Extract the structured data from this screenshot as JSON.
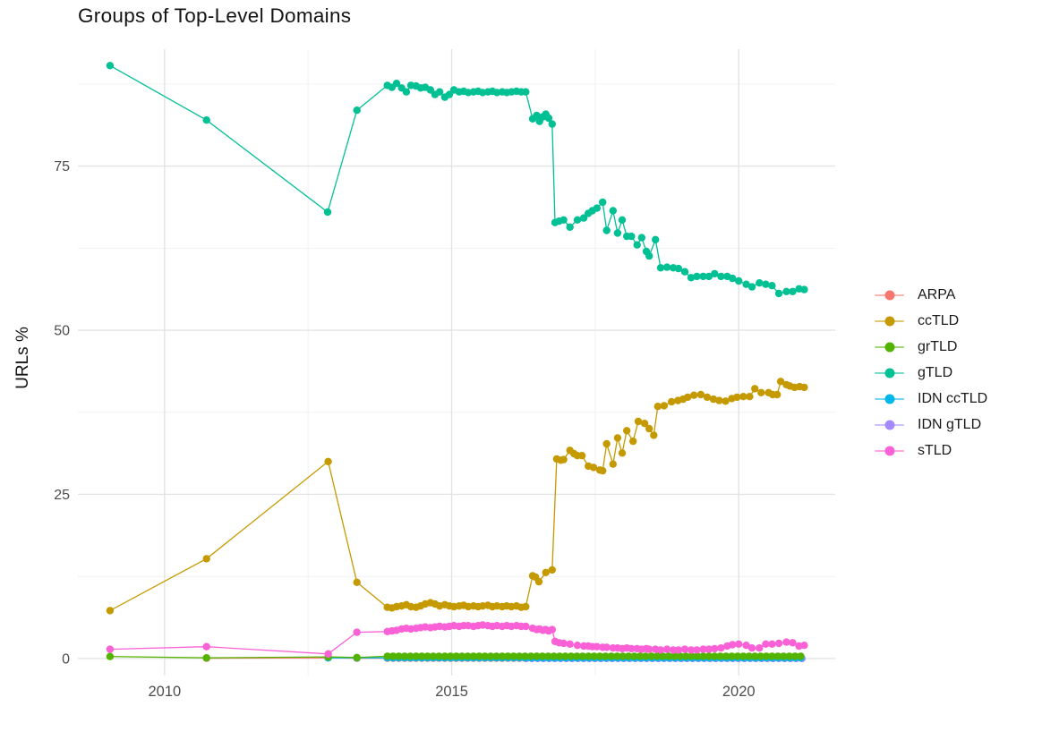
{
  "chart_data": {
    "type": "line",
    "title": "Groups of Top-Level Domains",
    "xlabel": "",
    "ylabel": "URLs %",
    "x_ticks": [
      2010,
      2015,
      2020
    ],
    "x_minor_ticks": [
      2012.5,
      2017.5
    ],
    "y_ticks": [
      0,
      25,
      50,
      75
    ],
    "y_minor_ticks": [
      12.5,
      37.5,
      62.5,
      87.5
    ],
    "x_range": [
      2008.49,
      2021.68
    ],
    "y_range": [
      -2.6,
      92.8
    ],
    "grid": true,
    "grid_major_color": "#E3E3E3",
    "grid_minor_color": "#F1F1F1",
    "axis_text_color": "#4D4D4D",
    "legend_position": "right",
    "draw_order": [
      "ARPA",
      "IDN gTLD",
      "IDN ccTLD",
      "grTLD",
      "ccTLD",
      "gTLD",
      "sTLD"
    ],
    "series": [
      {
        "name": "ARPA",
        "color": "#F8766D",
        "points": [
          [
            2010.73,
            0.05
          ],
          [
            2012.85,
            0.1
          ],
          [
            2013.35,
            0.05
          ]
        ],
        "run": {
          "x0": 2013.88,
          "dx": 0.1,
          "n": 25,
          "y_const": 0.05
        }
      },
      {
        "name": "ccTLD",
        "color": "#C49A00",
        "points": [
          [
            2009.05,
            7.3
          ],
          [
            2010.73,
            15.2
          ],
          [
            2012.85,
            30.0
          ],
          [
            2013.35,
            11.6
          ],
          [
            2013.88,
            7.8
          ],
          [
            2013.96,
            7.7
          ],
          [
            2014.04,
            7.9
          ],
          [
            2014.13,
            8.0
          ],
          [
            2014.21,
            8.2
          ],
          [
            2014.29,
            7.9
          ],
          [
            2014.38,
            7.8
          ],
          [
            2014.46,
            8.0
          ],
          [
            2014.54,
            8.3
          ],
          [
            2014.63,
            8.5
          ],
          [
            2014.71,
            8.3
          ],
          [
            2014.79,
            8.0
          ],
          [
            2014.88,
            8.2
          ],
          [
            2014.96,
            8.0
          ],
          [
            2015.04,
            7.9
          ],
          [
            2015.13,
            8.0
          ],
          [
            2015.21,
            8.1
          ],
          [
            2015.29,
            7.9
          ],
          [
            2015.38,
            8.0
          ],
          [
            2015.46,
            7.9
          ],
          [
            2015.54,
            8.0
          ],
          [
            2015.63,
            8.1
          ],
          [
            2015.71,
            7.9
          ],
          [
            2015.79,
            8.0
          ],
          [
            2015.88,
            7.9
          ],
          [
            2015.96,
            8.0
          ],
          [
            2016.04,
            7.9
          ],
          [
            2016.13,
            8.0
          ],
          [
            2016.21,
            7.8
          ],
          [
            2016.29,
            7.9
          ],
          [
            2016.41,
            12.6
          ],
          [
            2016.46,
            12.4
          ],
          [
            2016.52,
            11.7
          ],
          [
            2016.64,
            13.1
          ],
          [
            2016.75,
            13.5
          ],
          [
            2016.83,
            30.4
          ],
          [
            2016.9,
            30.2
          ],
          [
            2016.95,
            30.3
          ],
          [
            2017.06,
            31.7
          ],
          [
            2017.13,
            31.2
          ],
          [
            2017.19,
            30.9
          ],
          [
            2017.27,
            30.9
          ],
          [
            2017.38,
            29.3
          ],
          [
            2017.47,
            29.1
          ],
          [
            2017.58,
            28.7
          ],
          [
            2017.63,
            28.6
          ],
          [
            2017.7,
            32.7
          ],
          [
            2017.81,
            29.6
          ],
          [
            2017.89,
            33.6
          ],
          [
            2017.97,
            31.3
          ],
          [
            2018.05,
            34.7
          ],
          [
            2018.16,
            33.1
          ],
          [
            2018.25,
            36.1
          ],
          [
            2018.36,
            35.8
          ],
          [
            2018.44,
            35.0
          ],
          [
            2018.52,
            34.0
          ],
          [
            2018.59,
            38.4
          ],
          [
            2018.7,
            38.5
          ],
          [
            2018.83,
            39.1
          ],
          [
            2018.94,
            39.3
          ],
          [
            2019.03,
            39.5
          ],
          [
            2019.11,
            39.8
          ],
          [
            2019.22,
            40.1
          ],
          [
            2019.34,
            40.2
          ],
          [
            2019.45,
            39.8
          ],
          [
            2019.56,
            39.5
          ],
          [
            2019.66,
            39.3
          ],
          [
            2019.77,
            39.2
          ],
          [
            2019.88,
            39.6
          ],
          [
            2019.97,
            39.8
          ],
          [
            2020.08,
            39.9
          ],
          [
            2020.19,
            39.9
          ],
          [
            2020.28,
            41.1
          ],
          [
            2020.39,
            40.5
          ],
          [
            2020.52,
            40.5
          ],
          [
            2020.59,
            40.2
          ],
          [
            2020.67,
            40.2
          ],
          [
            2020.73,
            42.2
          ],
          [
            2020.83,
            41.7
          ],
          [
            2020.89,
            41.5
          ],
          [
            2020.97,
            41.3
          ],
          [
            2021.06,
            41.4
          ],
          [
            2021.14,
            41.3
          ]
        ],
        "run": null
      },
      {
        "name": "grTLD",
        "color": "#53B400",
        "points": [
          [
            2009.05,
            0.3
          ],
          [
            2010.73,
            0.1
          ],
          [
            2012.85,
            0.25
          ],
          [
            2013.35,
            0.15
          ]
        ],
        "run": {
          "x0": 2013.88,
          "dx": 0.1,
          "n": 73,
          "y_const": 0.35
        }
      },
      {
        "name": "gTLD",
        "color": "#00C094",
        "points": [
          [
            2009.05,
            90.3
          ],
          [
            2010.73,
            82.0
          ],
          [
            2012.84,
            68.0
          ],
          [
            2013.35,
            83.5
          ],
          [
            2013.88,
            87.3
          ],
          [
            2013.96,
            87.0
          ],
          [
            2014.04,
            87.6
          ],
          [
            2014.13,
            86.9
          ],
          [
            2014.21,
            86.3
          ],
          [
            2014.29,
            87.3
          ],
          [
            2014.38,
            87.2
          ],
          [
            2014.46,
            86.9
          ],
          [
            2014.54,
            87.0
          ],
          [
            2014.63,
            86.6
          ],
          [
            2014.71,
            85.9
          ],
          [
            2014.79,
            86.3
          ],
          [
            2014.88,
            85.5
          ],
          [
            2014.96,
            85.9
          ],
          [
            2015.04,
            86.6
          ],
          [
            2015.13,
            86.3
          ],
          [
            2015.21,
            86.4
          ],
          [
            2015.29,
            86.2
          ],
          [
            2015.38,
            86.3
          ],
          [
            2015.46,
            86.4
          ],
          [
            2015.54,
            86.2
          ],
          [
            2015.63,
            86.3
          ],
          [
            2015.71,
            86.4
          ],
          [
            2015.79,
            86.2
          ],
          [
            2015.88,
            86.3
          ],
          [
            2015.96,
            86.2
          ],
          [
            2016.04,
            86.3
          ],
          [
            2016.13,
            86.4
          ],
          [
            2016.21,
            86.3
          ],
          [
            2016.29,
            86.3
          ],
          [
            2016.41,
            82.2
          ],
          [
            2016.48,
            82.7
          ],
          [
            2016.53,
            81.8
          ],
          [
            2016.59,
            82.5
          ],
          [
            2016.64,
            82.9
          ],
          [
            2016.69,
            82.3
          ],
          [
            2016.75,
            81.4
          ],
          [
            2016.8,
            66.4
          ],
          [
            2016.87,
            66.6
          ],
          [
            2016.95,
            66.8
          ],
          [
            2017.06,
            65.7
          ],
          [
            2017.19,
            66.8
          ],
          [
            2017.3,
            67.1
          ],
          [
            2017.38,
            67.8
          ],
          [
            2017.45,
            68.2
          ],
          [
            2017.53,
            68.6
          ],
          [
            2017.63,
            69.5
          ],
          [
            2017.7,
            65.2
          ],
          [
            2017.81,
            68.2
          ],
          [
            2017.89,
            64.8
          ],
          [
            2017.97,
            66.8
          ],
          [
            2018.05,
            64.3
          ],
          [
            2018.13,
            64.3
          ],
          [
            2018.23,
            63.0
          ],
          [
            2018.31,
            64.1
          ],
          [
            2018.39,
            62.0
          ],
          [
            2018.44,
            61.3
          ],
          [
            2018.55,
            63.8
          ],
          [
            2018.64,
            59.5
          ],
          [
            2018.75,
            59.6
          ],
          [
            2018.86,
            59.5
          ],
          [
            2018.95,
            59.4
          ],
          [
            2019.06,
            58.9
          ],
          [
            2019.17,
            58.0
          ],
          [
            2019.27,
            58.2
          ],
          [
            2019.38,
            58.2
          ],
          [
            2019.48,
            58.2
          ],
          [
            2019.58,
            58.6
          ],
          [
            2019.69,
            58.2
          ],
          [
            2019.8,
            58.2
          ],
          [
            2019.89,
            57.9
          ],
          [
            2020.0,
            57.5
          ],
          [
            2020.13,
            57.0
          ],
          [
            2020.23,
            56.6
          ],
          [
            2020.36,
            57.2
          ],
          [
            2020.47,
            57.0
          ],
          [
            2020.58,
            56.8
          ],
          [
            2020.7,
            55.6
          ],
          [
            2020.83,
            55.9
          ],
          [
            2020.94,
            55.9
          ],
          [
            2021.05,
            56.3
          ],
          [
            2021.14,
            56.2
          ]
        ],
        "run": null
      },
      {
        "name": "IDN ccTLD",
        "color": "#00B6EB",
        "points": [
          [
            2012.85,
            0.1
          ],
          [
            2013.35,
            0.1
          ]
        ],
        "run": {
          "x0": 2013.88,
          "dx": 0.1,
          "n": 73,
          "y_const": 0.1
        }
      },
      {
        "name": "IDN gTLD",
        "color": "#A58AFF",
        "points": [],
        "run": {
          "x0": 2016.3,
          "dx": 0.1,
          "n": 49,
          "y_const": 0.0
        }
      },
      {
        "name": "sTLD",
        "color": "#FB61D7",
        "points": [
          [
            2009.05,
            1.4
          ],
          [
            2010.73,
            1.8
          ],
          [
            2012.85,
            0.7
          ],
          [
            2013.35,
            4.0
          ],
          [
            2013.88,
            4.1
          ],
          [
            2013.96,
            4.2
          ],
          [
            2014.04,
            4.3
          ],
          [
            2014.13,
            4.5
          ],
          [
            2014.21,
            4.6
          ],
          [
            2014.29,
            4.5
          ],
          [
            2014.38,
            4.6
          ],
          [
            2014.46,
            4.7
          ],
          [
            2014.54,
            4.8
          ],
          [
            2014.63,
            4.7
          ],
          [
            2014.71,
            4.8
          ],
          [
            2014.79,
            4.9
          ],
          [
            2014.88,
            4.8
          ],
          [
            2014.96,
            4.9
          ],
          [
            2015.04,
            5.0
          ],
          [
            2015.13,
            4.9
          ],
          [
            2015.21,
            5.0
          ],
          [
            2015.29,
            5.0
          ],
          [
            2015.38,
            4.9
          ],
          [
            2015.46,
            5.0
          ],
          [
            2015.54,
            5.1
          ],
          [
            2015.63,
            5.0
          ],
          [
            2015.71,
            4.9
          ],
          [
            2015.79,
            5.0
          ],
          [
            2015.88,
            4.9
          ],
          [
            2015.96,
            5.0
          ],
          [
            2016.04,
            4.9
          ],
          [
            2016.13,
            5.0
          ],
          [
            2016.21,
            4.9
          ],
          [
            2016.29,
            4.9
          ],
          [
            2016.41,
            4.6
          ],
          [
            2016.48,
            4.4
          ],
          [
            2016.53,
            4.5
          ],
          [
            2016.59,
            4.3
          ],
          [
            2016.64,
            4.4
          ],
          [
            2016.69,
            4.2
          ],
          [
            2016.75,
            4.4
          ],
          [
            2016.8,
            2.6
          ],
          [
            2016.87,
            2.4
          ],
          [
            2016.95,
            2.3
          ],
          [
            2017.06,
            2.2
          ],
          [
            2017.19,
            2.0
          ],
          [
            2017.3,
            1.9
          ],
          [
            2017.38,
            1.9
          ],
          [
            2017.45,
            1.8
          ],
          [
            2017.53,
            1.8
          ],
          [
            2017.63,
            1.7
          ],
          [
            2017.7,
            1.7
          ],
          [
            2017.81,
            1.6
          ],
          [
            2017.89,
            1.6
          ],
          [
            2017.97,
            1.5
          ],
          [
            2018.05,
            1.6
          ],
          [
            2018.13,
            1.5
          ],
          [
            2018.23,
            1.5
          ],
          [
            2018.31,
            1.4
          ],
          [
            2018.39,
            1.5
          ],
          [
            2018.44,
            1.4
          ],
          [
            2018.55,
            1.4
          ],
          [
            2018.64,
            1.3
          ],
          [
            2018.75,
            1.4
          ],
          [
            2018.86,
            1.3
          ],
          [
            2018.95,
            1.3
          ],
          [
            2019.06,
            1.4
          ],
          [
            2019.17,
            1.3
          ],
          [
            2019.27,
            1.3
          ],
          [
            2019.38,
            1.4
          ],
          [
            2019.48,
            1.4
          ],
          [
            2019.58,
            1.5
          ],
          [
            2019.69,
            1.6
          ],
          [
            2019.8,
            1.9
          ],
          [
            2019.89,
            2.1
          ],
          [
            2020.0,
            2.2
          ],
          [
            2020.13,
            2.0
          ],
          [
            2020.23,
            1.6
          ],
          [
            2020.36,
            1.6
          ],
          [
            2020.47,
            2.2
          ],
          [
            2020.58,
            2.2
          ],
          [
            2020.7,
            2.3
          ],
          [
            2020.83,
            2.5
          ],
          [
            2020.94,
            2.4
          ],
          [
            2021.05,
            1.9
          ],
          [
            2021.14,
            2.0
          ]
        ],
        "run": null
      }
    ]
  }
}
